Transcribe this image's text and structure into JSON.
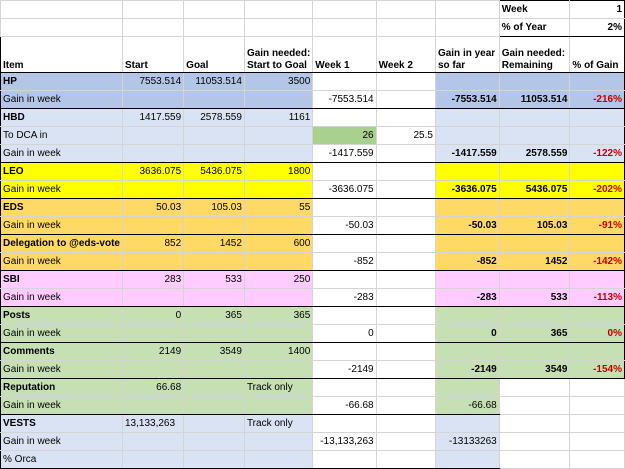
{
  "colors": {
    "blue": "#b4c6e7",
    "lavender": "#dae3f3",
    "yellow": "#ffff00",
    "orange": "#ffd966",
    "pink": "#ffccff",
    "green": "#c6e0b4",
    "brightgreen": "#a9d08e"
  },
  "week_label": "Week",
  "week_value": "1",
  "pct_year_label": "% of Year",
  "pct_year_value": "2%",
  "headers": {
    "item": "Item",
    "start": "Start",
    "goal": "Goal",
    "gain_needed_1": "Gain needed:",
    "gain_needed_2": "Start to Goal",
    "week1": "Week 1",
    "week2": "Week 2",
    "gain_year_1": "Gain in year",
    "gain_year_2": "so far",
    "gain_rem_1": "Gain needed:",
    "gain_rem_2": "Remaining",
    "pct_gain": "% of Gain"
  },
  "rows": {
    "hp": {
      "label": "HP",
      "start": "7553.514",
      "goal": "11053.514",
      "needed": "3500",
      "gw_label": "Gain in week",
      "gw_week1": "-7553.514",
      "gw_year": "-7553.514",
      "gw_rem": "11053.514",
      "gw_pct": "-216%"
    },
    "hbd": {
      "label": "HBD",
      "start": "1417.559",
      "goal": "2578.559",
      "needed": "1161",
      "dca_label": "To DCA in",
      "dca_week1": "26",
      "dca_week2": "25.5",
      "gw_label": "Gain in week",
      "gw_week1": "-1417.559",
      "gw_year": "-1417.559",
      "gw_rem": "2578.559",
      "gw_pct": "-122%"
    },
    "leo": {
      "label": "LEO",
      "start": "3636.075",
      "goal": "5436.075",
      "needed": "1800",
      "gw_label": "Gain in week",
      "gw_week1": "-3636.075",
      "gw_year": "-3636.075",
      "gw_rem": "5436.075",
      "gw_pct": "-202%"
    },
    "eds": {
      "label": "EDS",
      "start": "50.03",
      "goal": "105.03",
      "needed": "55",
      "gw_label": "Gain in week",
      "gw_week1": "-50.03",
      "gw_year": "-50.03",
      "gw_rem": "105.03",
      "gw_pct": "-91%"
    },
    "deleg": {
      "label": "Delegation to @eds-vote",
      "start": "852",
      "goal": "1452",
      "needed": "600",
      "gw_label": "Gain in week",
      "gw_week1": "-852",
      "gw_year": "-852",
      "gw_rem": "1452",
      "gw_pct": "-142%"
    },
    "sbi": {
      "label": "SBI",
      "start": "283",
      "goal": "533",
      "needed": "250",
      "gw_label": "Gain in week",
      "gw_week1": "-283",
      "gw_year": "-283",
      "gw_rem": "533",
      "gw_pct": "-113%"
    },
    "posts": {
      "label": "Posts",
      "start": "0",
      "goal": "365",
      "needed": "365",
      "gw_label": "Gain in week",
      "gw_week1": "0",
      "gw_year": "0",
      "gw_rem": "365",
      "gw_pct": "0%"
    },
    "comments": {
      "label": "Comments",
      "start": "2149",
      "goal": "3549",
      "needed": "1400",
      "gw_label": "Gain in week",
      "gw_week1": "-2149",
      "gw_year": "-2149",
      "gw_rem": "3549",
      "gw_pct": "-154%"
    },
    "rep": {
      "label": "Reputation",
      "start": "66.68",
      "needed": "Track only",
      "gw_label": "Gain in week",
      "gw_week1": "-66.68",
      "gw_year": "-66.68"
    },
    "vests": {
      "label": "VESTS",
      "start": "13,133,263",
      "needed": "Track only",
      "gw_label": "Gain in week",
      "gw_week1": "-13,133,263",
      "gw_year": "-13133263",
      "orca_label": "% Orca"
    }
  }
}
